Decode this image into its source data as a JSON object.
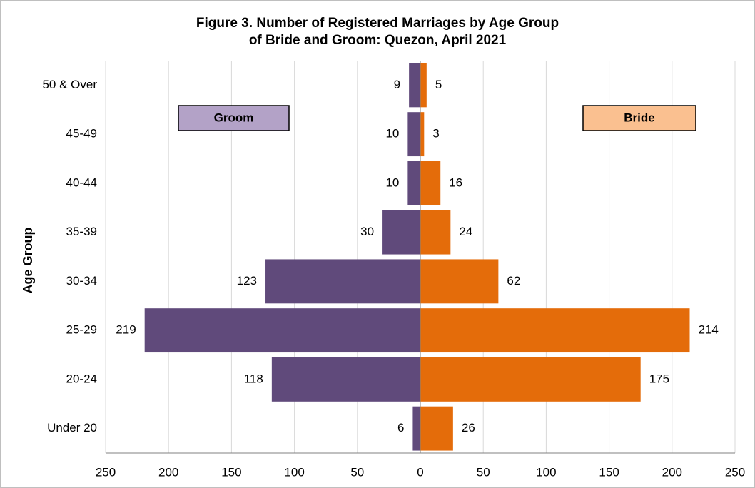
{
  "chart_data": {
    "type": "pyramid",
    "title": [
      "Figure 3. Number of Registered Marriages by Age Group",
      "of Bride and Groom: Quezon, April 2021"
    ],
    "y_label": "Age Group",
    "categories": [
      "50 & Over",
      "45-49",
      "40-44",
      "35-39",
      "30-34",
      "25-29",
      "20-24",
      "Under 20"
    ],
    "series": [
      {
        "name": "Groom",
        "side": "left",
        "color": "#604a7b",
        "legend_color": "#b3a2c7",
        "values": [
          9,
          10,
          10,
          30,
          123,
          219,
          118,
          6
        ]
      },
      {
        "name": "Bride",
        "side": "right",
        "color": "#e46c0a",
        "legend_color": "#fac090",
        "values": [
          5,
          3,
          16,
          24,
          62,
          214,
          175,
          26
        ]
      }
    ],
    "xlim": [
      -250,
      250
    ],
    "xticks": [
      {
        "value": -250,
        "label": "250"
      },
      {
        "value": -200,
        "label": "200"
      },
      {
        "value": -150,
        "label": "150"
      },
      {
        "value": -100,
        "label": "100"
      },
      {
        "value": -50,
        "label": "50"
      },
      0,
      50,
      100,
      150,
      200,
      250
    ],
    "grid": true
  }
}
